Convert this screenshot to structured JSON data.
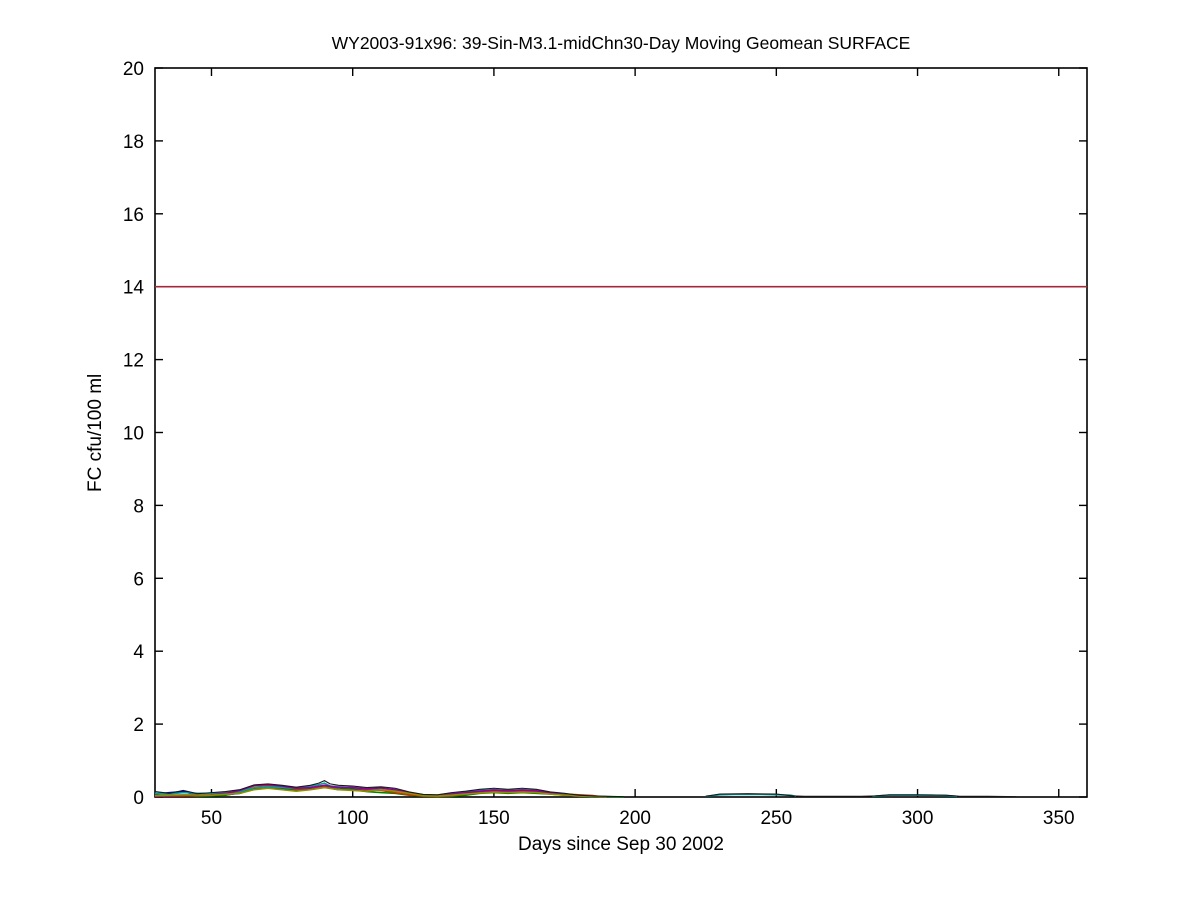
{
  "chart_data": {
    "type": "line",
    "title": "WY2003-91x96: 39-Sin-M3.1-midChn30-Day Moving Geomean SURFACE",
    "xlabel": "Days since Sep 30 2002",
    "ylabel": "FC cfu/100 ml",
    "xlim": [
      30,
      360
    ],
    "ylim": [
      0,
      20
    ],
    "xticks": [
      50,
      100,
      150,
      200,
      250,
      300,
      350
    ],
    "yticks": [
      0,
      2,
      4,
      6,
      8,
      10,
      12,
      14,
      16,
      18,
      20
    ],
    "grid": false,
    "legend": "none",
    "axis_color": "#000000",
    "background": "#ffffff",
    "threshold": {
      "name": "geomean-standard-line",
      "value": 14,
      "color": "#a52839",
      "width": 1.6
    },
    "series": [
      {
        "name": "blue-station",
        "color": "#0000cc",
        "width": 1.6,
        "segments": [
          [
            [
              30,
              0.08
            ],
            [
              35,
              0.12
            ],
            [
              40,
              0.15
            ],
            [
              45,
              0.05
            ],
            [
              50,
              0.04
            ],
            [
              55,
              0.06
            ],
            [
              60,
              0.1
            ],
            [
              65,
              0.22
            ],
            [
              70,
              0.25
            ],
            [
              75,
              0.22
            ],
            [
              80,
              0.18
            ],
            [
              85,
              0.22
            ],
            [
              90,
              0.28
            ],
            [
              95,
              0.2
            ],
            [
              100,
              0.22
            ],
            [
              105,
              0.18
            ],
            [
              110,
              0.22
            ],
            [
              115,
              0.18
            ],
            [
              120,
              0.1
            ],
            [
              125,
              0.04
            ],
            [
              130,
              0.03
            ],
            [
              135,
              0.06
            ],
            [
              140,
              0.1
            ],
            [
              145,
              0.15
            ],
            [
              150,
              0.18
            ],
            [
              155,
              0.15
            ],
            [
              160,
              0.18
            ],
            [
              165,
              0.16
            ],
            [
              170,
              0.1
            ],
            [
              175,
              0.06
            ],
            [
              180,
              0.02
            ],
            [
              185,
              0.01
            ]
          ]
        ]
      },
      {
        "name": "green-station",
        "color": "#007f00",
        "width": 1.6,
        "segments": [
          [
            [
              30,
              0.05
            ],
            [
              35,
              0.03
            ],
            [
              40,
              0.04
            ],
            [
              45,
              0.02
            ],
            [
              50,
              0.03
            ],
            [
              55,
              0.05
            ],
            [
              60,
              0.12
            ],
            [
              65,
              0.25
            ],
            [
              70,
              0.28
            ],
            [
              75,
              0.25
            ],
            [
              80,
              0.2
            ],
            [
              85,
              0.25
            ],
            [
              90,
              0.3
            ],
            [
              95,
              0.25
            ],
            [
              100,
              0.2
            ],
            [
              105,
              0.15
            ],
            [
              110,
              0.12
            ],
            [
              115,
              0.1
            ],
            [
              120,
              0.05
            ],
            [
              125,
              0.02
            ],
            [
              130,
              0.01
            ],
            [
              135,
              0.02
            ],
            [
              140,
              0.05
            ],
            [
              145,
              0.1
            ],
            [
              150,
              0.12
            ],
            [
              155,
              0.1
            ],
            [
              160,
              0.12
            ],
            [
              165,
              0.1
            ],
            [
              170,
              0.08
            ],
            [
              175,
              0.05
            ],
            [
              180,
              0.02
            ],
            [
              185,
              0.01
            ],
            [
              190,
              0.01
            ],
            [
              196,
              0.0
            ]
          ]
        ]
      },
      {
        "name": "red-station",
        "color": "#cc3300",
        "width": 1.6,
        "segments": [
          [
            [
              30,
              0.02
            ],
            [
              40,
              0.03
            ],
            [
              50,
              0.05
            ],
            [
              55,
              0.08
            ],
            [
              60,
              0.15
            ],
            [
              65,
              0.3
            ],
            [
              70,
              0.32
            ],
            [
              75,
              0.28
            ],
            [
              80,
              0.22
            ],
            [
              85,
              0.25
            ],
            [
              90,
              0.3
            ],
            [
              95,
              0.28
            ],
            [
              100,
              0.25
            ],
            [
              105,
              0.2
            ],
            [
              110,
              0.18
            ],
            [
              115,
              0.12
            ],
            [
              120,
              0.06
            ],
            [
              125,
              0.03
            ],
            [
              130,
              0.02
            ],
            [
              135,
              0.04
            ],
            [
              140,
              0.08
            ],
            [
              145,
              0.12
            ],
            [
              150,
              0.15
            ],
            [
              155,
              0.13
            ],
            [
              160,
              0.15
            ],
            [
              165,
              0.14
            ],
            [
              170,
              0.1
            ],
            [
              175,
              0.08
            ],
            [
              180,
              0.06
            ],
            [
              185,
              0.04
            ],
            [
              188,
              0.01
            ]
          ]
        ]
      },
      {
        "name": "cyan-station",
        "color": "#089c9c",
        "width": 1.6,
        "segments": [
          [
            [
              30,
              0.1
            ],
            [
              35,
              0.08
            ],
            [
              40,
              0.12
            ],
            [
              45,
              0.1
            ],
            [
              50,
              0.1
            ],
            [
              55,
              0.12
            ],
            [
              60,
              0.15
            ],
            [
              65,
              0.25
            ],
            [
              70,
              0.28
            ],
            [
              75,
              0.26
            ],
            [
              80,
              0.24
            ],
            [
              85,
              0.3
            ],
            [
              88,
              0.34
            ],
            [
              90,
              0.38
            ],
            [
              92,
              0.3
            ],
            [
              95,
              0.28
            ],
            [
              100,
              0.26
            ],
            [
              105,
              0.22
            ],
            [
              110,
              0.24
            ],
            [
              115,
              0.2
            ],
            [
              120,
              0.12
            ],
            [
              125,
              0.06
            ],
            [
              130,
              0.05
            ],
            [
              135,
              0.1
            ],
            [
              140,
              0.14
            ],
            [
              145,
              0.18
            ],
            [
              150,
              0.2
            ],
            [
              155,
              0.18
            ],
            [
              160,
              0.2
            ],
            [
              165,
              0.18
            ],
            [
              170,
              0.12
            ],
            [
              175,
              0.08
            ],
            [
              180,
              0.04
            ],
            [
              185,
              0.01
            ]
          ],
          [
            [
              225,
              0.02
            ],
            [
              230,
              0.06
            ],
            [
              235,
              0.07
            ],
            [
              240,
              0.07
            ],
            [
              245,
              0.07
            ],
            [
              250,
              0.06
            ],
            [
              255,
              0.05
            ],
            [
              257,
              0.02
            ]
          ],
          [
            [
              284,
              0.02
            ],
            [
              290,
              0.05
            ],
            [
              295,
              0.05
            ],
            [
              300,
              0.05
            ],
            [
              305,
              0.05
            ],
            [
              310,
              0.04
            ],
            [
              314,
              0.02
            ]
          ]
        ]
      },
      {
        "name": "magenta-station",
        "color": "#90009c",
        "width": 1.6,
        "segments": [
          [
            [
              30,
              0.03
            ],
            [
              40,
              0.05
            ],
            [
              50,
              0.06
            ],
            [
              55,
              0.1
            ],
            [
              60,
              0.18
            ],
            [
              65,
              0.32
            ],
            [
              70,
              0.34
            ],
            [
              75,
              0.3
            ],
            [
              80,
              0.24
            ],
            [
              85,
              0.26
            ],
            [
              90,
              0.32
            ],
            [
              95,
              0.26
            ],
            [
              100,
              0.26
            ],
            [
              105,
              0.22
            ],
            [
              110,
              0.25
            ],
            [
              115,
              0.2
            ],
            [
              120,
              0.12
            ],
            [
              125,
              0.05
            ],
            [
              130,
              0.04
            ],
            [
              135,
              0.08
            ],
            [
              140,
              0.12
            ],
            [
              145,
              0.16
            ],
            [
              150,
              0.19
            ],
            [
              155,
              0.17
            ],
            [
              160,
              0.19
            ],
            [
              165,
              0.17
            ],
            [
              170,
              0.11
            ],
            [
              175,
              0.06
            ],
            [
              180,
              0.02
            ]
          ]
        ]
      },
      {
        "name": "olive-station",
        "color": "#8f8f00",
        "width": 1.6,
        "segments": [
          [
            [
              30,
              0.04
            ],
            [
              40,
              0.06
            ],
            [
              50,
              0.05
            ],
            [
              60,
              0.1
            ],
            [
              65,
              0.2
            ],
            [
              70,
              0.24
            ],
            [
              75,
              0.2
            ],
            [
              80,
              0.16
            ],
            [
              85,
              0.2
            ],
            [
              90,
              0.26
            ],
            [
              95,
              0.2
            ],
            [
              100,
              0.18
            ],
            [
              105,
              0.16
            ],
            [
              110,
              0.2
            ],
            [
              115,
              0.16
            ],
            [
              120,
              0.1
            ],
            [
              125,
              0.04
            ],
            [
              130,
              0.03
            ],
            [
              135,
              0.05
            ],
            [
              140,
              0.08
            ],
            [
              145,
              0.11
            ],
            [
              150,
              0.13
            ],
            [
              155,
              0.12
            ],
            [
              160,
              0.13
            ],
            [
              165,
              0.12
            ],
            [
              170,
              0.08
            ],
            [
              175,
              0.05
            ],
            [
              180,
              0.03
            ],
            [
              185,
              0.02
            ],
            [
              190,
              0.01
            ]
          ]
        ]
      },
      {
        "name": "black-station",
        "color": "#1a1a1a",
        "width": 1.1,
        "segments": [
          [
            [
              30,
              0.15
            ],
            [
              35,
              0.1
            ],
            [
              40,
              0.18
            ],
            [
              45,
              0.09
            ],
            [
              50,
              0.12
            ],
            [
              55,
              0.15
            ],
            [
              60,
              0.2
            ],
            [
              65,
              0.33
            ],
            [
              70,
              0.36
            ],
            [
              75,
              0.32
            ],
            [
              80,
              0.27
            ],
            [
              85,
              0.32
            ],
            [
              88,
              0.38
            ],
            [
              90,
              0.45
            ],
            [
              92,
              0.36
            ],
            [
              95,
              0.32
            ],
            [
              100,
              0.3
            ],
            [
              105,
              0.26
            ],
            [
              110,
              0.28
            ],
            [
              115,
              0.24
            ],
            [
              120,
              0.14
            ],
            [
              125,
              0.07
            ],
            [
              130,
              0.06
            ],
            [
              135,
              0.12
            ],
            [
              140,
              0.16
            ],
            [
              145,
              0.21
            ],
            [
              150,
              0.24
            ],
            [
              155,
              0.21
            ],
            [
              160,
              0.24
            ],
            [
              165,
              0.21
            ],
            [
              170,
              0.14
            ],
            [
              175,
              0.1
            ],
            [
              180,
              0.05
            ],
            [
              185,
              0.03
            ],
            [
              190,
              0.02
            ],
            [
              196,
              0.01
            ]
          ],
          [
            [
              225,
              0.02
            ],
            [
              230,
              0.08
            ],
            [
              240,
              0.09
            ],
            [
              250,
              0.08
            ],
            [
              256,
              0.03
            ],
            [
              260,
              0.02
            ],
            [
              270,
              0.02
            ],
            [
              280,
              0.02
            ],
            [
              285,
              0.03
            ],
            [
              290,
              0.06
            ],
            [
              300,
              0.06
            ],
            [
              310,
              0.05
            ],
            [
              315,
              0.02
            ],
            [
              325,
              0.02
            ],
            [
              335,
              0.01
            ]
          ]
        ]
      }
    ]
  }
}
